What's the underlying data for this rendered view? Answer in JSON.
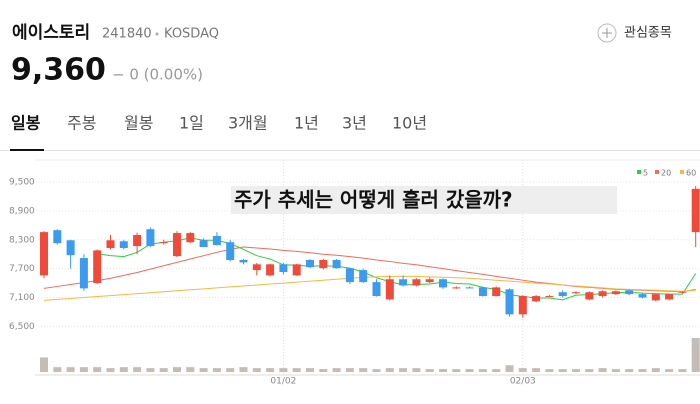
{
  "header": {
    "name": "에이스토리",
    "code": "241840",
    "market": "KOSDAQ",
    "watch": "관심종목",
    "price": "9,360",
    "change": "− 0 (0.00%)"
  },
  "tabs": [
    "일봉",
    "주봉",
    "월봉",
    "1일",
    "3개월",
    "1년",
    "3년",
    "10년"
  ],
  "chart_data": {
    "type": "candlestick",
    "annotation": "주가 추세는 어떻게 흘러 갔을까?",
    "categories": [
      null,
      null,
      null,
      null,
      null,
      null,
      null,
      null,
      null,
      null,
      null,
      null,
      null,
      null,
      null,
      null,
      null,
      null,
      "01/02",
      null,
      null,
      null,
      null,
      null,
      null,
      null,
      null,
      null,
      null,
      null,
      null,
      null,
      null,
      null,
      null,
      null,
      "02/03",
      null,
      null,
      null,
      null,
      null,
      null,
      null,
      null,
      null,
      null,
      null,
      null,
      null
    ],
    "open": [
      7560,
      8500,
      8290,
      7920,
      7400,
      8130,
      8270,
      8170,
      8520,
      8230,
      7960,
      8250,
      8290,
      8380,
      8250,
      7880,
      7670,
      7560,
      7790,
      7560,
      7880,
      7710,
      7880,
      7710,
      7670,
      7420,
      7060,
      7480,
      7350,
      7420,
      7480,
      7290,
      7310,
      7310,
      7130,
      7270,
      6750,
      7020,
      7130,
      7210,
      7190,
      7060,
      7130,
      7170,
      7250,
      7170,
      7040,
      7060,
      7210,
      8460
    ],
    "high": [
      8480,
      8520,
      8300,
      8000,
      8100,
      8400,
      8300,
      8450,
      8560,
      8300,
      8480,
      8460,
      8330,
      8460,
      8300,
      7900,
      7820,
      7800,
      7820,
      7800,
      7900,
      7900,
      7900,
      7720,
      7700,
      7480,
      7560,
      7560,
      7500,
      7520,
      7500,
      7330,
      7330,
      7330,
      7330,
      7290,
      7150,
      7150,
      7150,
      7250,
      7230,
      7230,
      7250,
      7250,
      7270,
      7200,
      7180,
      7180,
      7230,
      9420
    ],
    "low": [
      7500,
      8200,
      7700,
      7240,
      7380,
      8100,
      8100,
      8000,
      8150,
      8200,
      7940,
      8230,
      8150,
      8180,
      7850,
      7790,
      7560,
      7540,
      7580,
      7550,
      7710,
      7680,
      7700,
      7380,
      7400,
      7120,
      7040,
      7330,
      7330,
      7400,
      7280,
      7280,
      7290,
      7120,
      7120,
      6700,
      6680,
      7000,
      7110,
      7100,
      7170,
      7040,
      7100,
      7150,
      7150,
      7080,
      7020,
      7040,
      7190,
      8150
    ],
    "close": [
      8460,
      8230,
      7980,
      7290,
      8080,
      8290,
      8130,
      8400,
      8170,
      8250,
      8440,
      8440,
      8150,
      8190,
      7880,
      7830,
      7790,
      7790,
      7630,
      7790,
      7730,
      7880,
      7710,
      7420,
      7420,
      7130,
      7480,
      7350,
      7480,
      7480,
      7310,
      7310,
      7300,
      7130,
      7310,
      6750,
      7130,
      7130,
      7130,
      7130,
      7210,
      7210,
      7230,
      7230,
      7170,
      7100,
      7170,
      7170,
      7220,
      9360
    ],
    "volume": [
      15,
      5,
      5,
      5,
      5,
      4,
      5,
      5,
      4,
      4,
      5,
      5,
      4,
      4,
      4,
      5,
      4,
      4,
      4,
      4,
      4,
      3,
      4,
      4,
      4,
      3,
      4,
      4,
      4,
      3,
      3,
      3,
      3,
      3,
      3,
      7,
      4,
      4,
      3,
      3,
      3,
      3,
      4,
      3,
      3,
      3,
      4,
      3,
      3,
      35
    ],
    "volume_ylim": [
      0,
      36
    ],
    "series": [
      {
        "name": "5",
        "color": "#2ecc40",
        "values": [
          null,
          null,
          null,
          null,
          8010,
          7970,
          7950,
          8040,
          8210,
          8250,
          8280,
          8340,
          8290,
          8290,
          8220,
          8100,
          7970,
          7900,
          7780,
          7770,
          7750,
          7760,
          7750,
          7710,
          7630,
          7510,
          7430,
          7360,
          7370,
          7380,
          7420,
          7390,
          7380,
          7310,
          7270,
          7160,
          7120,
          7090,
          7090,
          7050,
          7150,
          7160,
          7180,
          7200,
          7210,
          7190,
          7180,
          7170,
          7170,
          7600
        ]
      },
      {
        "name": "20",
        "color": "#f26b5b",
        "values": [
          7290,
          7330,
          7370,
          7410,
          7450,
          7500,
          7560,
          7620,
          7690,
          7760,
          7830,
          7900,
          7970,
          8040,
          8100,
          8150,
          8130,
          8110,
          8080,
          8060,
          8030,
          8000,
          7980,
          7950,
          7920,
          7880,
          7850,
          7810,
          7780,
          7740,
          7700,
          7660,
          7620,
          7580,
          7540,
          7500,
          7460,
          7420,
          7390,
          7360,
          7330,
          7310,
          7290,
          7270,
          7260,
          7250,
          7240,
          7230,
          7220,
          7270
        ]
      },
      {
        "name": "60",
        "color": "#f5b942",
        "values": [
          7040,
          7060,
          7080,
          7100,
          7120,
          7140,
          7160,
          7180,
          7200,
          7220,
          7240,
          7260,
          7280,
          7300,
          7320,
          7340,
          7360,
          7380,
          7400,
          7420,
          7440,
          7460,
          7480,
          7500,
          7520,
          7530,
          7540,
          7540,
          7540,
          7530,
          7520,
          7510,
          7500,
          7480,
          7460,
          7440,
          7420,
          7400,
          7380,
          7360,
          7340,
          7320,
          7300,
          7280,
          7270,
          7260,
          7250,
          7240,
          7230,
          7250
        ]
      }
    ],
    "up_color": "#f04b3a",
    "down_color": "#3a9bef",
    "ylim": [
      6320,
      9960
    ],
    "yticks": [
      {
        "value": 9500,
        "label": "9,500"
      },
      {
        "value": 8900,
        "label": "8,900"
      },
      {
        "value": 8300,
        "label": "8,300"
      },
      {
        "value": 7700,
        "label": "7,700"
      },
      {
        "value": 7100,
        "label": "7,100"
      },
      {
        "value": 6500,
        "label": "6,500"
      }
    ],
    "grid": true
  }
}
